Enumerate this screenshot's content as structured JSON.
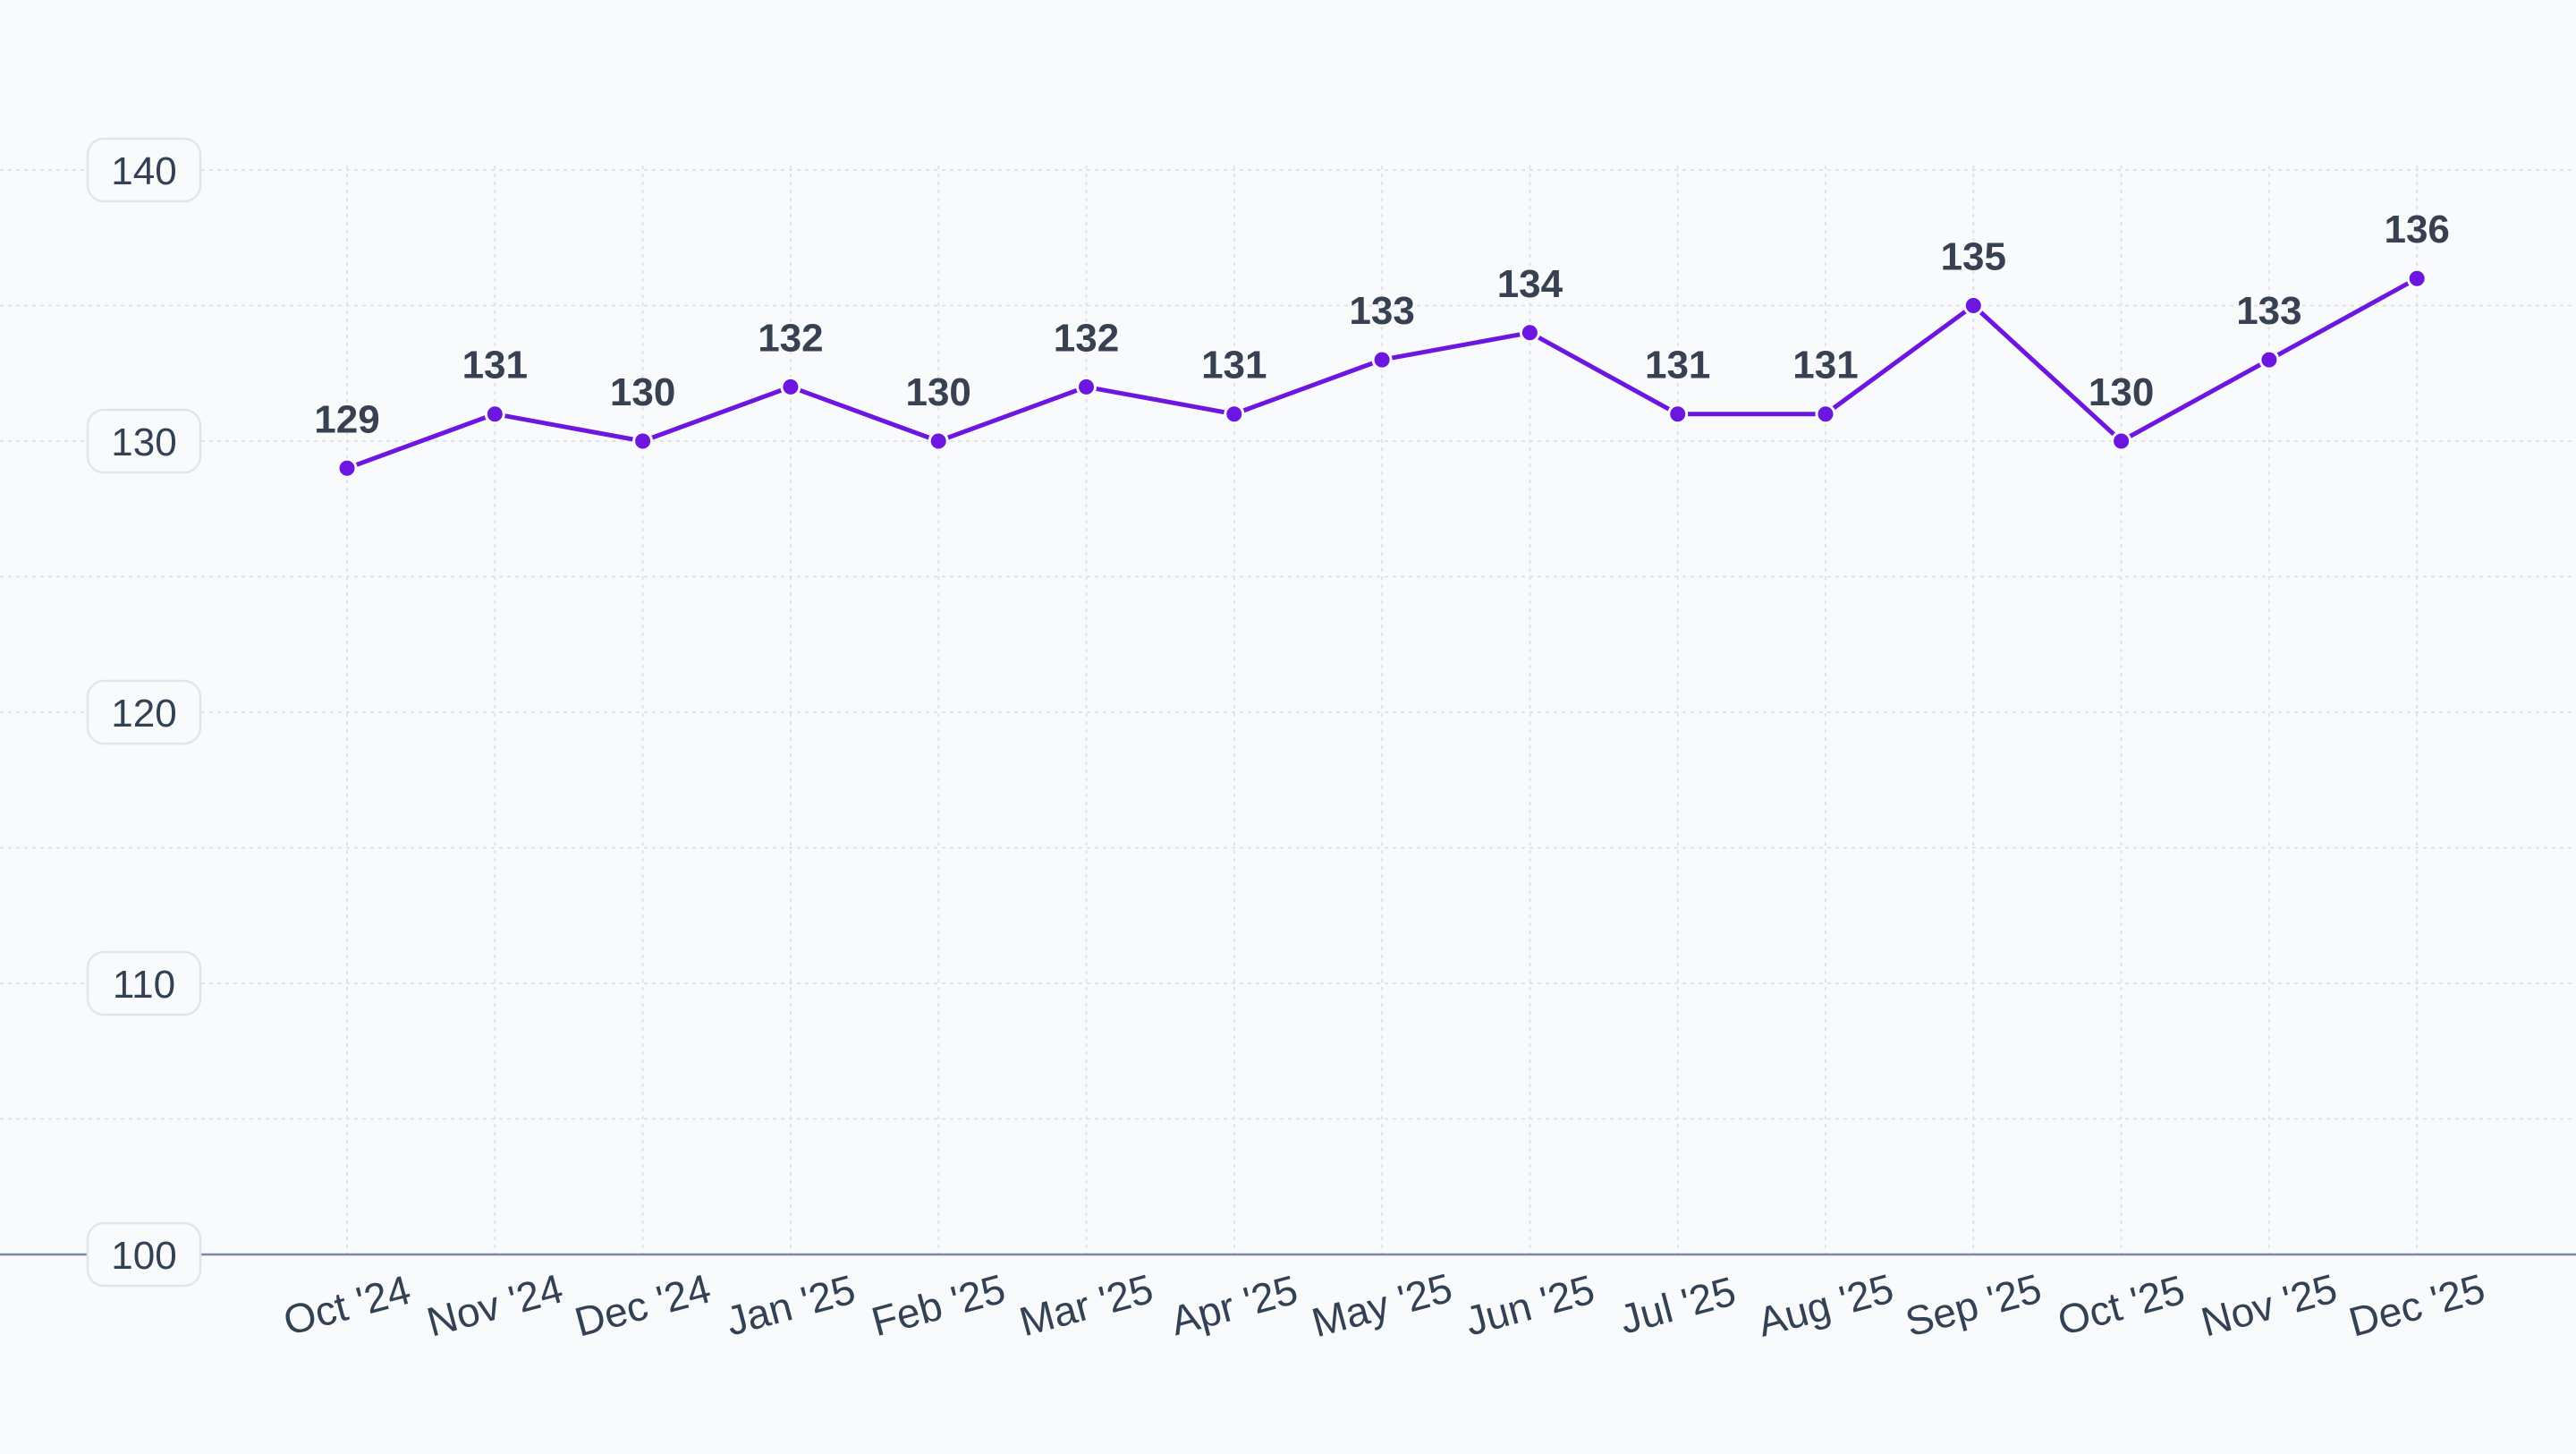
{
  "colors": {
    "background": "#f8fafc",
    "series": "#6d16e0",
    "grid": "#dfe3e8",
    "axis": "#7a8aa0",
    "label_box_fill": "#f8fafc",
    "label_box_stroke": "#e2e6ea"
  },
  "chart_data": {
    "type": "line",
    "title": "",
    "xlabel": "",
    "ylabel": "",
    "ylim": [
      100,
      140
    ],
    "yticks": [
      "100",
      "110",
      "120",
      "130",
      "140"
    ],
    "categories": [
      "Oct '24",
      "Nov '24",
      "Dec '24",
      "Jan '25",
      "Feb '25",
      "Mar '25",
      "Apr '25",
      "May '25",
      "Jun '25",
      "Jul '25",
      "Aug '25",
      "Sep '25",
      "Oct '25",
      "Nov '25",
      "Dec '25"
    ],
    "series": [
      {
        "values": [
          129,
          131,
          130,
          132,
          130,
          132,
          131,
          133,
          134,
          131,
          131,
          135,
          130,
          133,
          136
        ],
        "labels": [
          "129",
          "131",
          "130",
          "132",
          "130",
          "132",
          "131",
          "133",
          "134",
          "131",
          "131",
          "135",
          "130",
          "133",
          "136"
        ]
      }
    ],
    "grid": true,
    "legend": "none"
  }
}
